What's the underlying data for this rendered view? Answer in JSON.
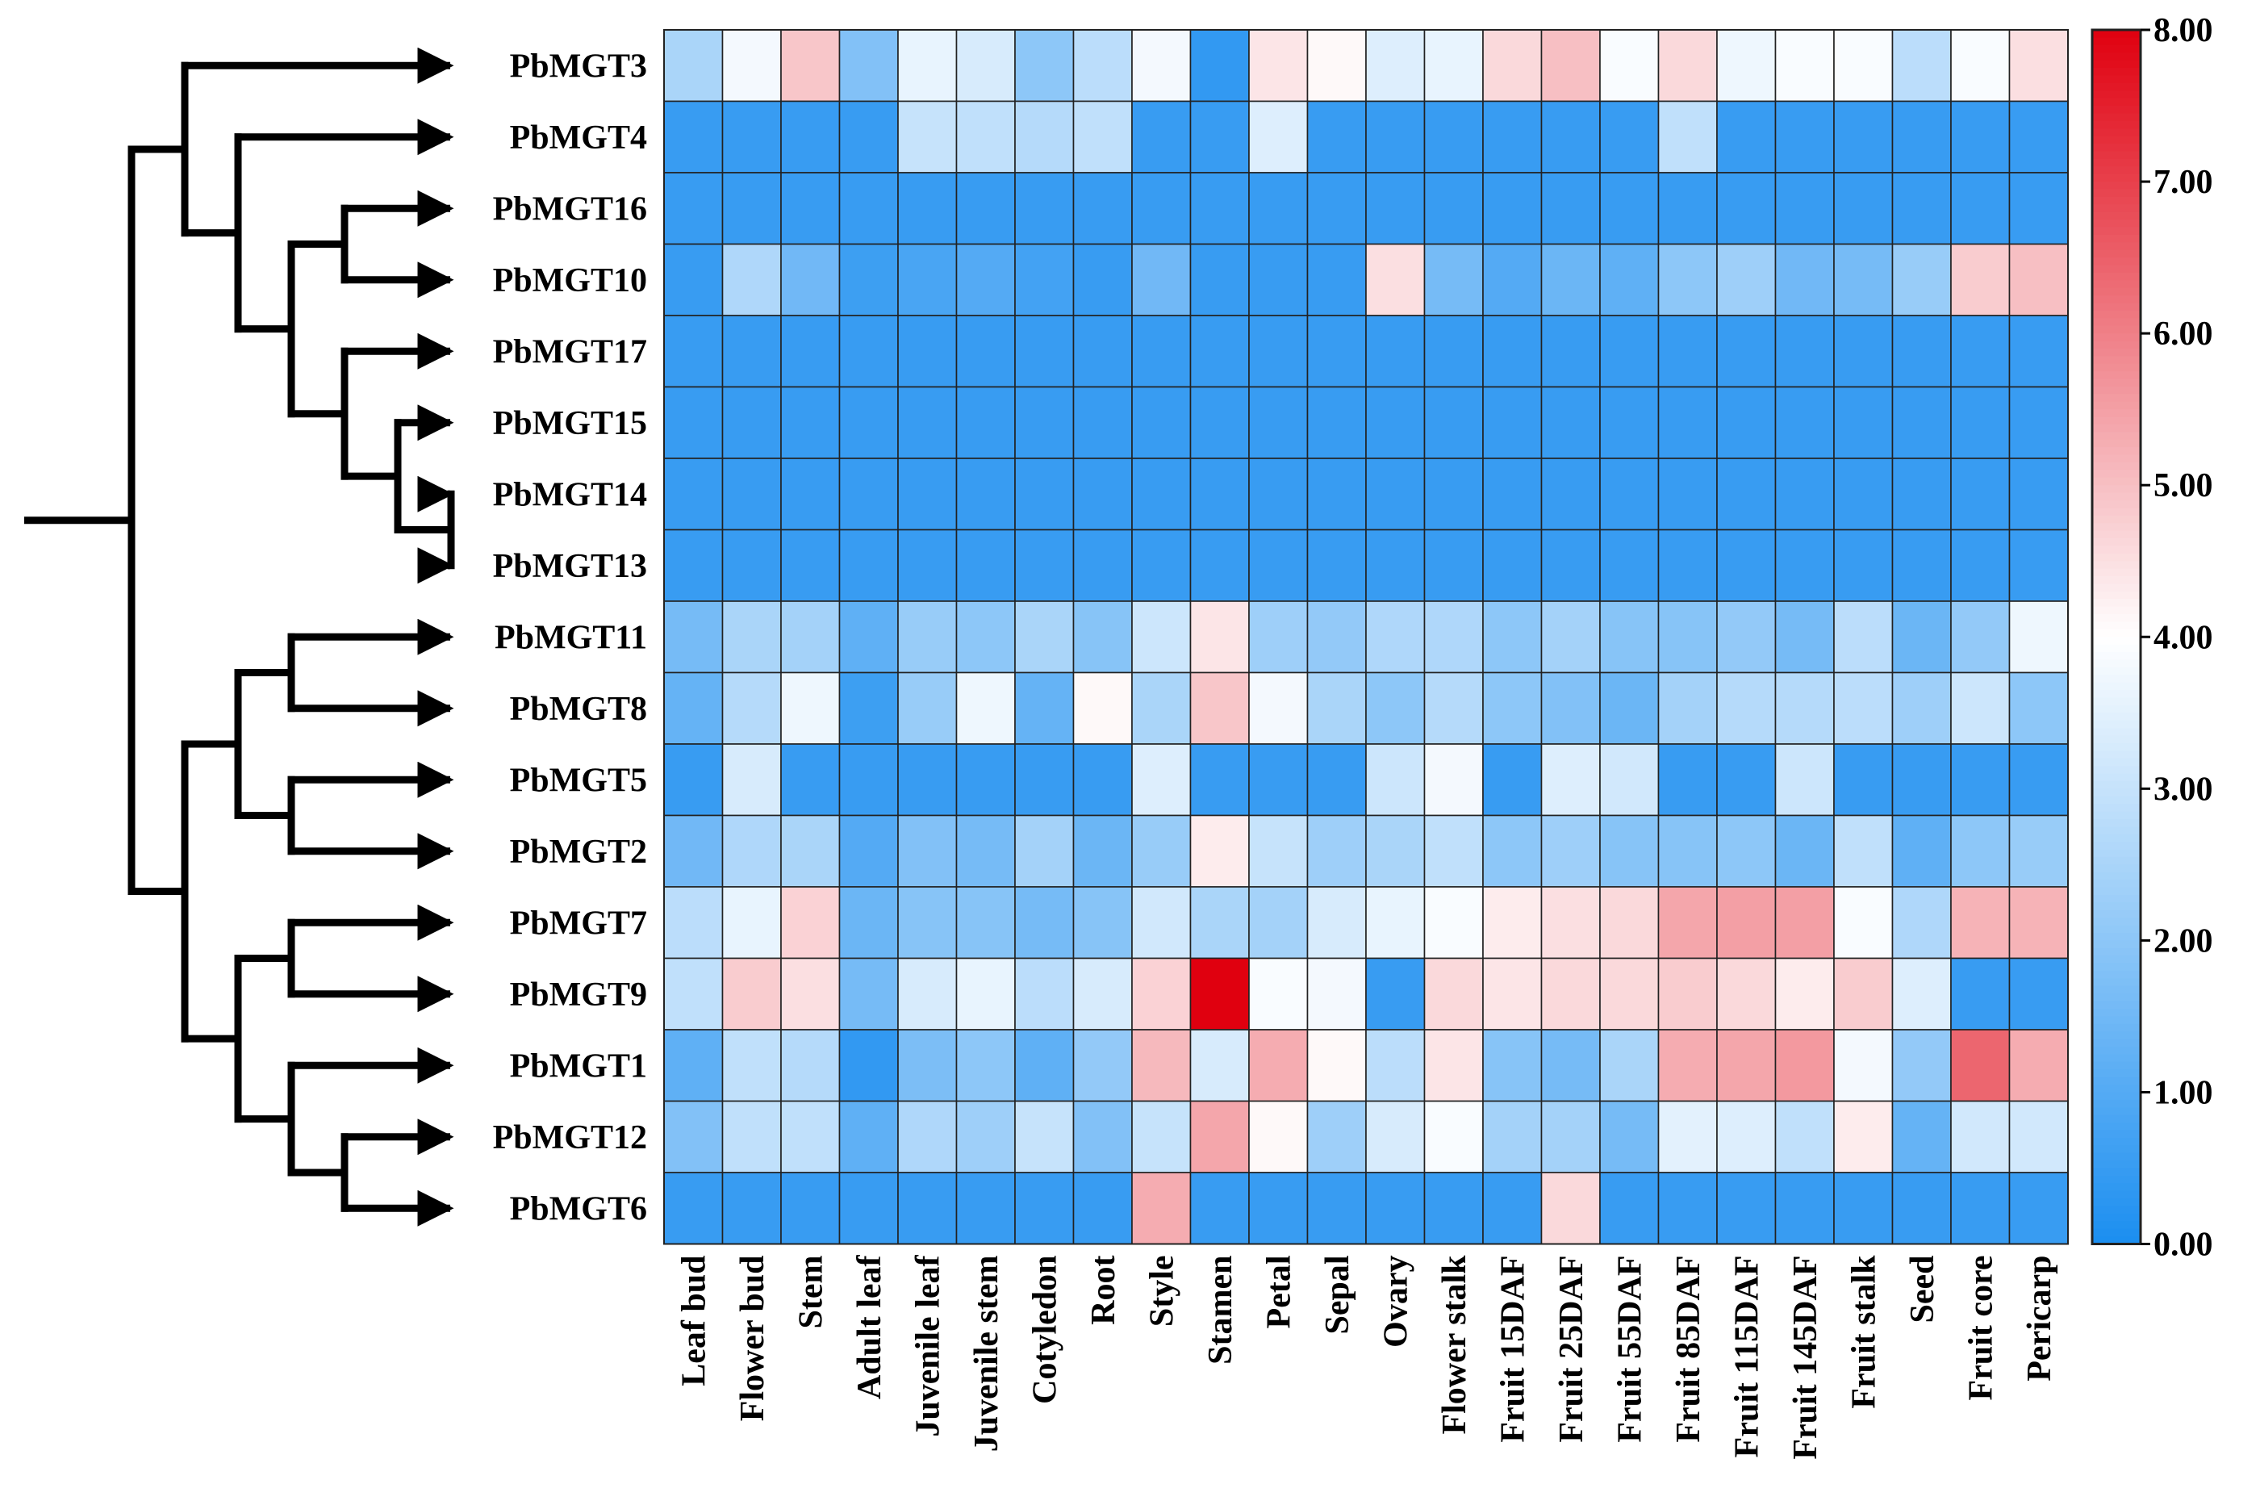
{
  "chart_data": {
    "type": "heatmap",
    "title": "",
    "rows": [
      "PbMGT3",
      "PbMGT4",
      "PbMGT16",
      "PbMGT10",
      "PbMGT17",
      "PbMGT15",
      "PbMGT14",
      "PbMGT13",
      "PbMGT11",
      "PbMGT8",
      "PbMGT5",
      "PbMGT2",
      "PbMGT7",
      "PbMGT9",
      "PbMGT1",
      "PbMGT12",
      "PbMGT6"
    ],
    "columns": [
      "Leaf bud",
      "Flower bud",
      "Stem",
      "Adult leaf",
      "Juvenile leaf",
      "Juvenile stem",
      "Cotyledon",
      "Root",
      "Style",
      "Stamen",
      "Petal",
      "Sepal",
      "Ovary",
      "Flower stalk",
      "Fruit 15DAF",
      "Fruit 25DAF",
      "Fruit 55DAF",
      "Fruit 85DAF",
      "Fruit 115DAF",
      "Fruit 145DAF",
      "Fruit stalk",
      "Seed",
      "Fruit core",
      "Pericarp"
    ],
    "values": [
      [
        2.5,
        3.8,
        4.9,
        1.8,
        3.6,
        3.3,
        2.0,
        2.8,
        3.8,
        0.4,
        4.4,
        4.1,
        3.4,
        3.6,
        4.6,
        5.0,
        3.9,
        4.6,
        3.7,
        3.9,
        3.9,
        2.8,
        3.9,
        4.5
      ],
      [
        0.5,
        0.5,
        0.5,
        0.5,
        3.0,
        2.9,
        2.7,
        2.9,
        0.5,
        0.5,
        3.4,
        0.5,
        0.5,
        0.5,
        0.5,
        0.5,
        0.5,
        2.9,
        0.5,
        0.5,
        0.5,
        0.5,
        0.5,
        0.5
      ],
      [
        0.5,
        0.5,
        0.5,
        0.5,
        0.5,
        0.5,
        0.5,
        0.5,
        0.5,
        0.5,
        0.5,
        0.5,
        0.5,
        0.5,
        0.5,
        0.5,
        0.5,
        0.5,
        0.5,
        0.5,
        0.5,
        0.5,
        0.5,
        0.5
      ],
      [
        0.5,
        2.6,
        1.5,
        0.6,
        0.8,
        1.0,
        0.7,
        0.5,
        1.5,
        0.5,
        0.5,
        0.5,
        4.5,
        1.6,
        1.0,
        1.4,
        1.2,
        2.0,
        2.3,
        1.5,
        1.6,
        2.2,
        4.8,
        5.0
      ],
      [
        0.5,
        0.5,
        0.5,
        0.5,
        0.5,
        0.5,
        0.5,
        0.5,
        0.5,
        0.5,
        0.5,
        0.5,
        0.5,
        0.5,
        0.5,
        0.5,
        0.5,
        0.5,
        0.5,
        0.5,
        0.5,
        0.5,
        0.5,
        0.5
      ],
      [
        0.5,
        0.5,
        0.5,
        0.5,
        0.5,
        0.5,
        0.5,
        0.5,
        0.5,
        0.5,
        0.5,
        0.5,
        0.5,
        0.5,
        0.5,
        0.5,
        0.5,
        0.5,
        0.5,
        0.5,
        0.5,
        0.5,
        0.5,
        0.5
      ],
      [
        0.5,
        0.5,
        0.5,
        0.5,
        0.5,
        0.5,
        0.5,
        0.5,
        0.5,
        0.5,
        0.5,
        0.5,
        0.5,
        0.5,
        0.5,
        0.5,
        0.5,
        0.5,
        0.5,
        0.5,
        0.5,
        0.5,
        0.5,
        0.5
      ],
      [
        0.5,
        0.5,
        0.5,
        0.5,
        0.5,
        0.5,
        0.5,
        0.5,
        0.5,
        0.5,
        0.5,
        0.5,
        0.5,
        0.5,
        0.5,
        0.5,
        0.5,
        0.5,
        0.5,
        0.5,
        0.5,
        0.5,
        0.5,
        0.5
      ],
      [
        1.6,
        2.5,
        2.4,
        1.2,
        2.2,
        2.0,
        2.5,
        1.9,
        3.1,
        4.4,
        2.3,
        2.1,
        2.6,
        2.6,
        2.0,
        2.4,
        1.9,
        1.9,
        2.1,
        1.6,
        2.8,
        1.4,
        2.1,
        3.7
      ],
      [
        1.3,
        2.7,
        3.7,
        0.6,
        2.2,
        3.7,
        1.3,
        4.1,
        2.5,
        4.9,
        3.8,
        2.5,
        2.0,
        2.7,
        2.0,
        1.8,
        1.4,
        2.4,
        2.7,
        2.7,
        2.8,
        2.3,
        3.1,
        2.0
      ],
      [
        0.5,
        3.3,
        0.5,
        0.5,
        0.5,
        0.5,
        0.5,
        0.5,
        3.4,
        0.5,
        0.5,
        0.5,
        3.1,
        3.8,
        0.5,
        3.4,
        3.2,
        0.5,
        0.5,
        3.1,
        0.5,
        0.5,
        0.5,
        0.5
      ],
      [
        1.5,
        2.6,
        2.5,
        1.0,
        1.8,
        1.6,
        2.4,
        1.4,
        2.2,
        4.3,
        3.0,
        2.3,
        2.5,
        2.9,
        2.0,
        2.3,
        1.9,
        1.9,
        2.0,
        1.4,
        2.9,
        1.2,
        2.0,
        2.2
      ],
      [
        2.8,
        3.6,
        4.7,
        1.4,
        1.9,
        1.9,
        1.6,
        1.9,
        3.2,
        2.5,
        2.4,
        3.3,
        3.6,
        3.9,
        4.3,
        4.5,
        4.6,
        5.4,
        5.5,
        5.5,
        3.9,
        2.6,
        5.2,
        5.2
      ],
      [
        2.9,
        4.8,
        4.5,
        1.6,
        3.3,
        3.6,
        2.8,
        3.3,
        4.7,
        8.0,
        3.9,
        3.8,
        0.5,
        4.6,
        4.4,
        4.6,
        4.6,
        4.8,
        4.6,
        4.3,
        4.8,
        3.4,
        0.5,
        0.5
      ],
      [
        1.2,
        2.9,
        2.7,
        0.4,
        1.7,
        2.0,
        1.2,
        2.1,
        5.1,
        3.3,
        5.3,
        4.1,
        2.8,
        4.4,
        1.9,
        1.6,
        2.5,
        5.3,
        5.4,
        5.6,
        3.8,
        2.1,
        6.4,
        5.3
      ],
      [
        1.8,
        2.9,
        2.9,
        1.2,
        2.6,
        2.3,
        3.0,
        1.8,
        3.0,
        5.4,
        4.1,
        2.3,
        3.3,
        3.9,
        2.4,
        2.4,
        1.6,
        3.5,
        3.4,
        2.9,
        4.3,
        1.3,
        3.2,
        3.2
      ],
      [
        0.5,
        0.5,
        0.5,
        0.5,
        0.5,
        0.5,
        0.5,
        0.5,
        5.3,
        0.5,
        0.5,
        0.5,
        0.5,
        0.5,
        0.5,
        4.6,
        0.5,
        0.5,
        0.5,
        0.5,
        0.5,
        0.5,
        0.5,
        0.5
      ]
    ],
    "colorbar": {
      "min": 0,
      "max": 8,
      "mid": 4,
      "colors": {
        "low": "#1b8ef0",
        "mid": "#ffffff",
        "high": "#e0000f"
      },
      "ticks": [
        "0.00",
        "1.00",
        "2.00",
        "3.00",
        "4.00",
        "5.00",
        "6.00",
        "7.00",
        "8.00"
      ]
    },
    "dendrogram": {
      "newick": "((PbMGT3,(PbMGT4,((PbMGT16,PbMGT10),(PbMGT17,(PbMGT15,(PbMGT14,PbMGT13)))))),(((PbMGT11,PbMGT8),(PbMGT5,PbMGT2)),((PbMGT7,PbMGT9),(PbMGT1,(PbMGT12,PbMGT6)))))"
    }
  }
}
